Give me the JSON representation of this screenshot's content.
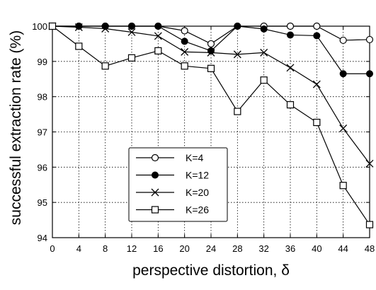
{
  "chart_data": {
    "type": "line",
    "xlabel": "perspective distortion, δ",
    "ylabel": "successful extraction rate (%)",
    "x": [
      0,
      4,
      8,
      12,
      16,
      20,
      24,
      28,
      32,
      36,
      40,
      44,
      48
    ],
    "xlim": [
      0,
      48
    ],
    "ylim": [
      94,
      100
    ],
    "xticks": [
      "0",
      "4",
      "8",
      "12",
      "16",
      "20",
      "24",
      "28",
      "32",
      "36",
      "40",
      "44",
      "48"
    ],
    "yticks": [
      "94",
      "95",
      "96",
      "97",
      "98",
      "99",
      "100"
    ],
    "grid": true,
    "legend_position": "lower-left",
    "series": [
      {
        "name": "K=4",
        "marker": "open-circle",
        "values": [
          100,
          100,
          100,
          100,
          100,
          99.87,
          99.5,
          100,
          100,
          100,
          100,
          99.6,
          99.62
        ]
      },
      {
        "name": "K=12",
        "marker": "filled-circle",
        "values": [
          100,
          100,
          100,
          100,
          100,
          99.57,
          99.3,
          100,
          99.92,
          99.75,
          99.73,
          98.65,
          98.65
        ]
      },
      {
        "name": "K=20",
        "marker": "cross",
        "values": [
          100,
          99.97,
          99.93,
          99.83,
          99.72,
          99.27,
          99.25,
          99.2,
          99.25,
          98.82,
          98.35,
          97.1,
          96.1
        ]
      },
      {
        "name": "K=26",
        "marker": "open-square",
        "values": [
          100,
          99.43,
          98.87,
          99.1,
          99.3,
          98.87,
          98.8,
          97.58,
          98.47,
          97.77,
          97.27,
          95.48,
          94.37
        ]
      }
    ]
  }
}
